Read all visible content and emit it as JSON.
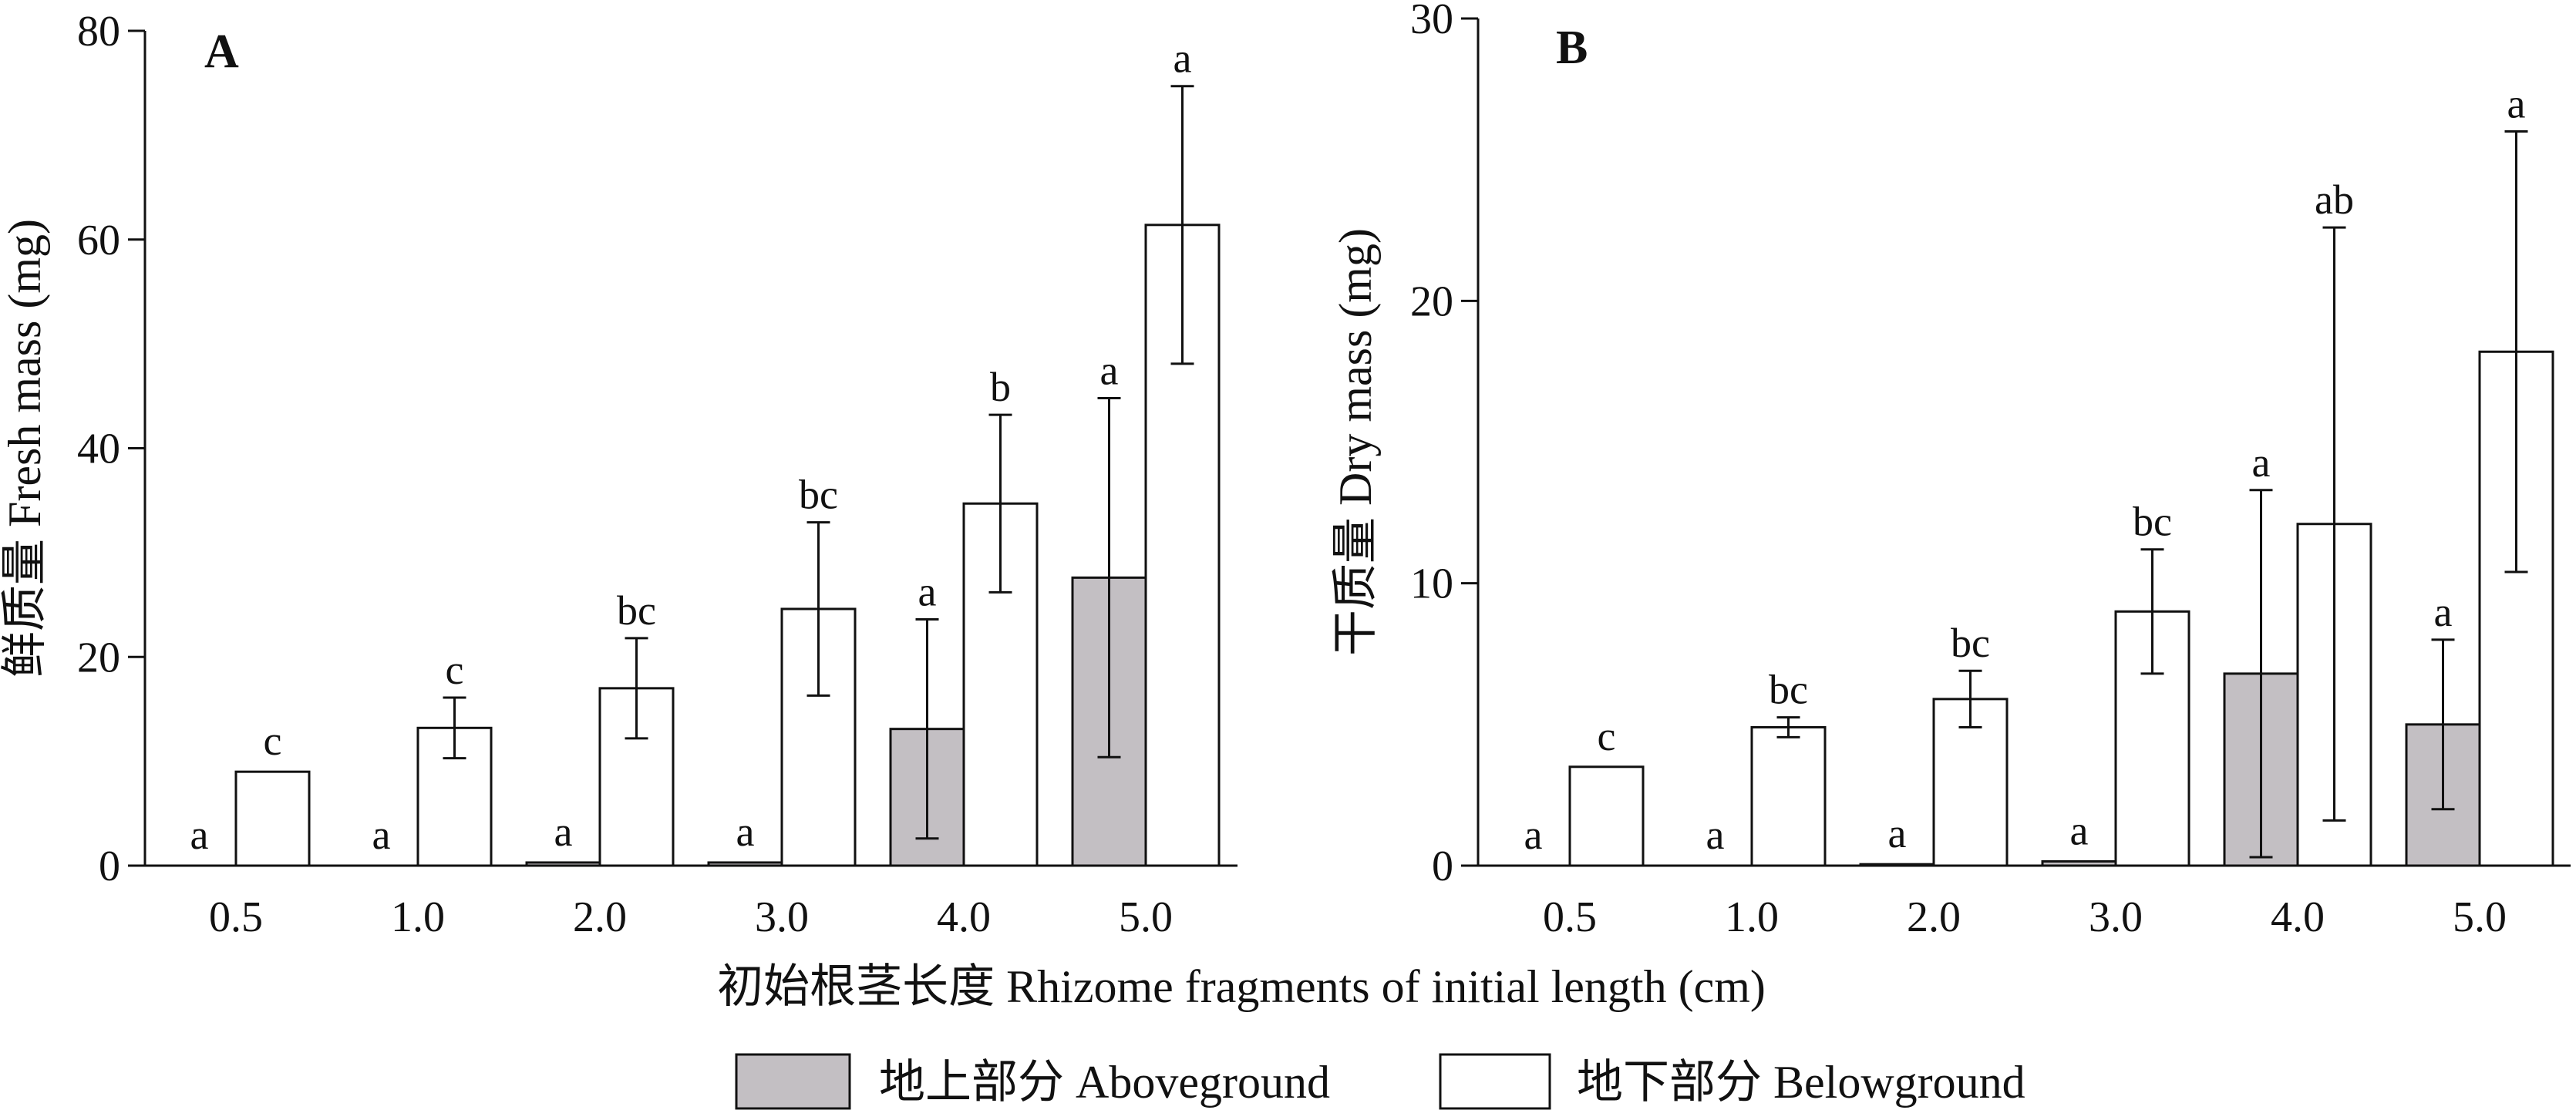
{
  "figure": {
    "xlabel": "初始根茎长度 Rhizome fragments of  initial length (cm)",
    "legend": [
      {
        "name": "地上部分 Aboveground",
        "color": "#c3bfc3"
      },
      {
        "name": "地下部分 Belowground",
        "color": "#ffffff"
      }
    ]
  },
  "chart_data": [
    {
      "type": "bar",
      "panel": "A",
      "ylabel": "鲜质量 Fresh mass (mg)",
      "ylim": [
        0,
        80
      ],
      "yticks": [
        0,
        20,
        40,
        60,
        80
      ],
      "categories": [
        "0.5",
        "1.0",
        "2.0",
        "3.0",
        "4.0",
        "5.0"
      ],
      "series": [
        {
          "name": "地上部分 Aboveground",
          "values": [
            0,
            0,
            0.3,
            0.3,
            13.1,
            27.6
          ],
          "errors": [
            0,
            0,
            0,
            0,
            10.5,
            17.2
          ],
          "labels": [
            "a",
            "a",
            "a",
            "a",
            "a",
            "a"
          ]
        },
        {
          "name": "地下部分 Belowground",
          "values": [
            9.0,
            13.2,
            17.0,
            24.6,
            34.7,
            61.4
          ],
          "errors": [
            0,
            2.9,
            4.8,
            8.3,
            8.5,
            13.3
          ],
          "labels": [
            "c",
            "c",
            "bc",
            "bc",
            "b",
            "a"
          ]
        }
      ]
    },
    {
      "type": "bar",
      "panel": "B",
      "ylabel": "干质量 Dry mass (mg)",
      "ylim": [
        0,
        30
      ],
      "yticks": [
        0,
        10,
        20,
        30
      ],
      "categories": [
        "0.5",
        "1.0",
        "2.0",
        "3.0",
        "4.0",
        "5.0"
      ],
      "series": [
        {
          "name": "地上部分 Aboveground",
          "values": [
            0,
            0,
            0.05,
            0.15,
            6.8,
            5.0
          ],
          "errors": [
            0,
            0,
            0,
            0,
            6.5,
            3.0
          ],
          "labels": [
            "a",
            "a",
            "a",
            "a",
            "a",
            "a"
          ]
        },
        {
          "name": "地下部分 Belowground",
          "values": [
            3.5,
            4.9,
            5.9,
            9.0,
            12.1,
            18.2
          ],
          "errors": [
            0,
            0.35,
            1.0,
            2.2,
            10.5,
            7.8
          ],
          "labels": [
            "c",
            "bc",
            "bc",
            "bc",
            "ab",
            "a"
          ]
        }
      ]
    }
  ]
}
